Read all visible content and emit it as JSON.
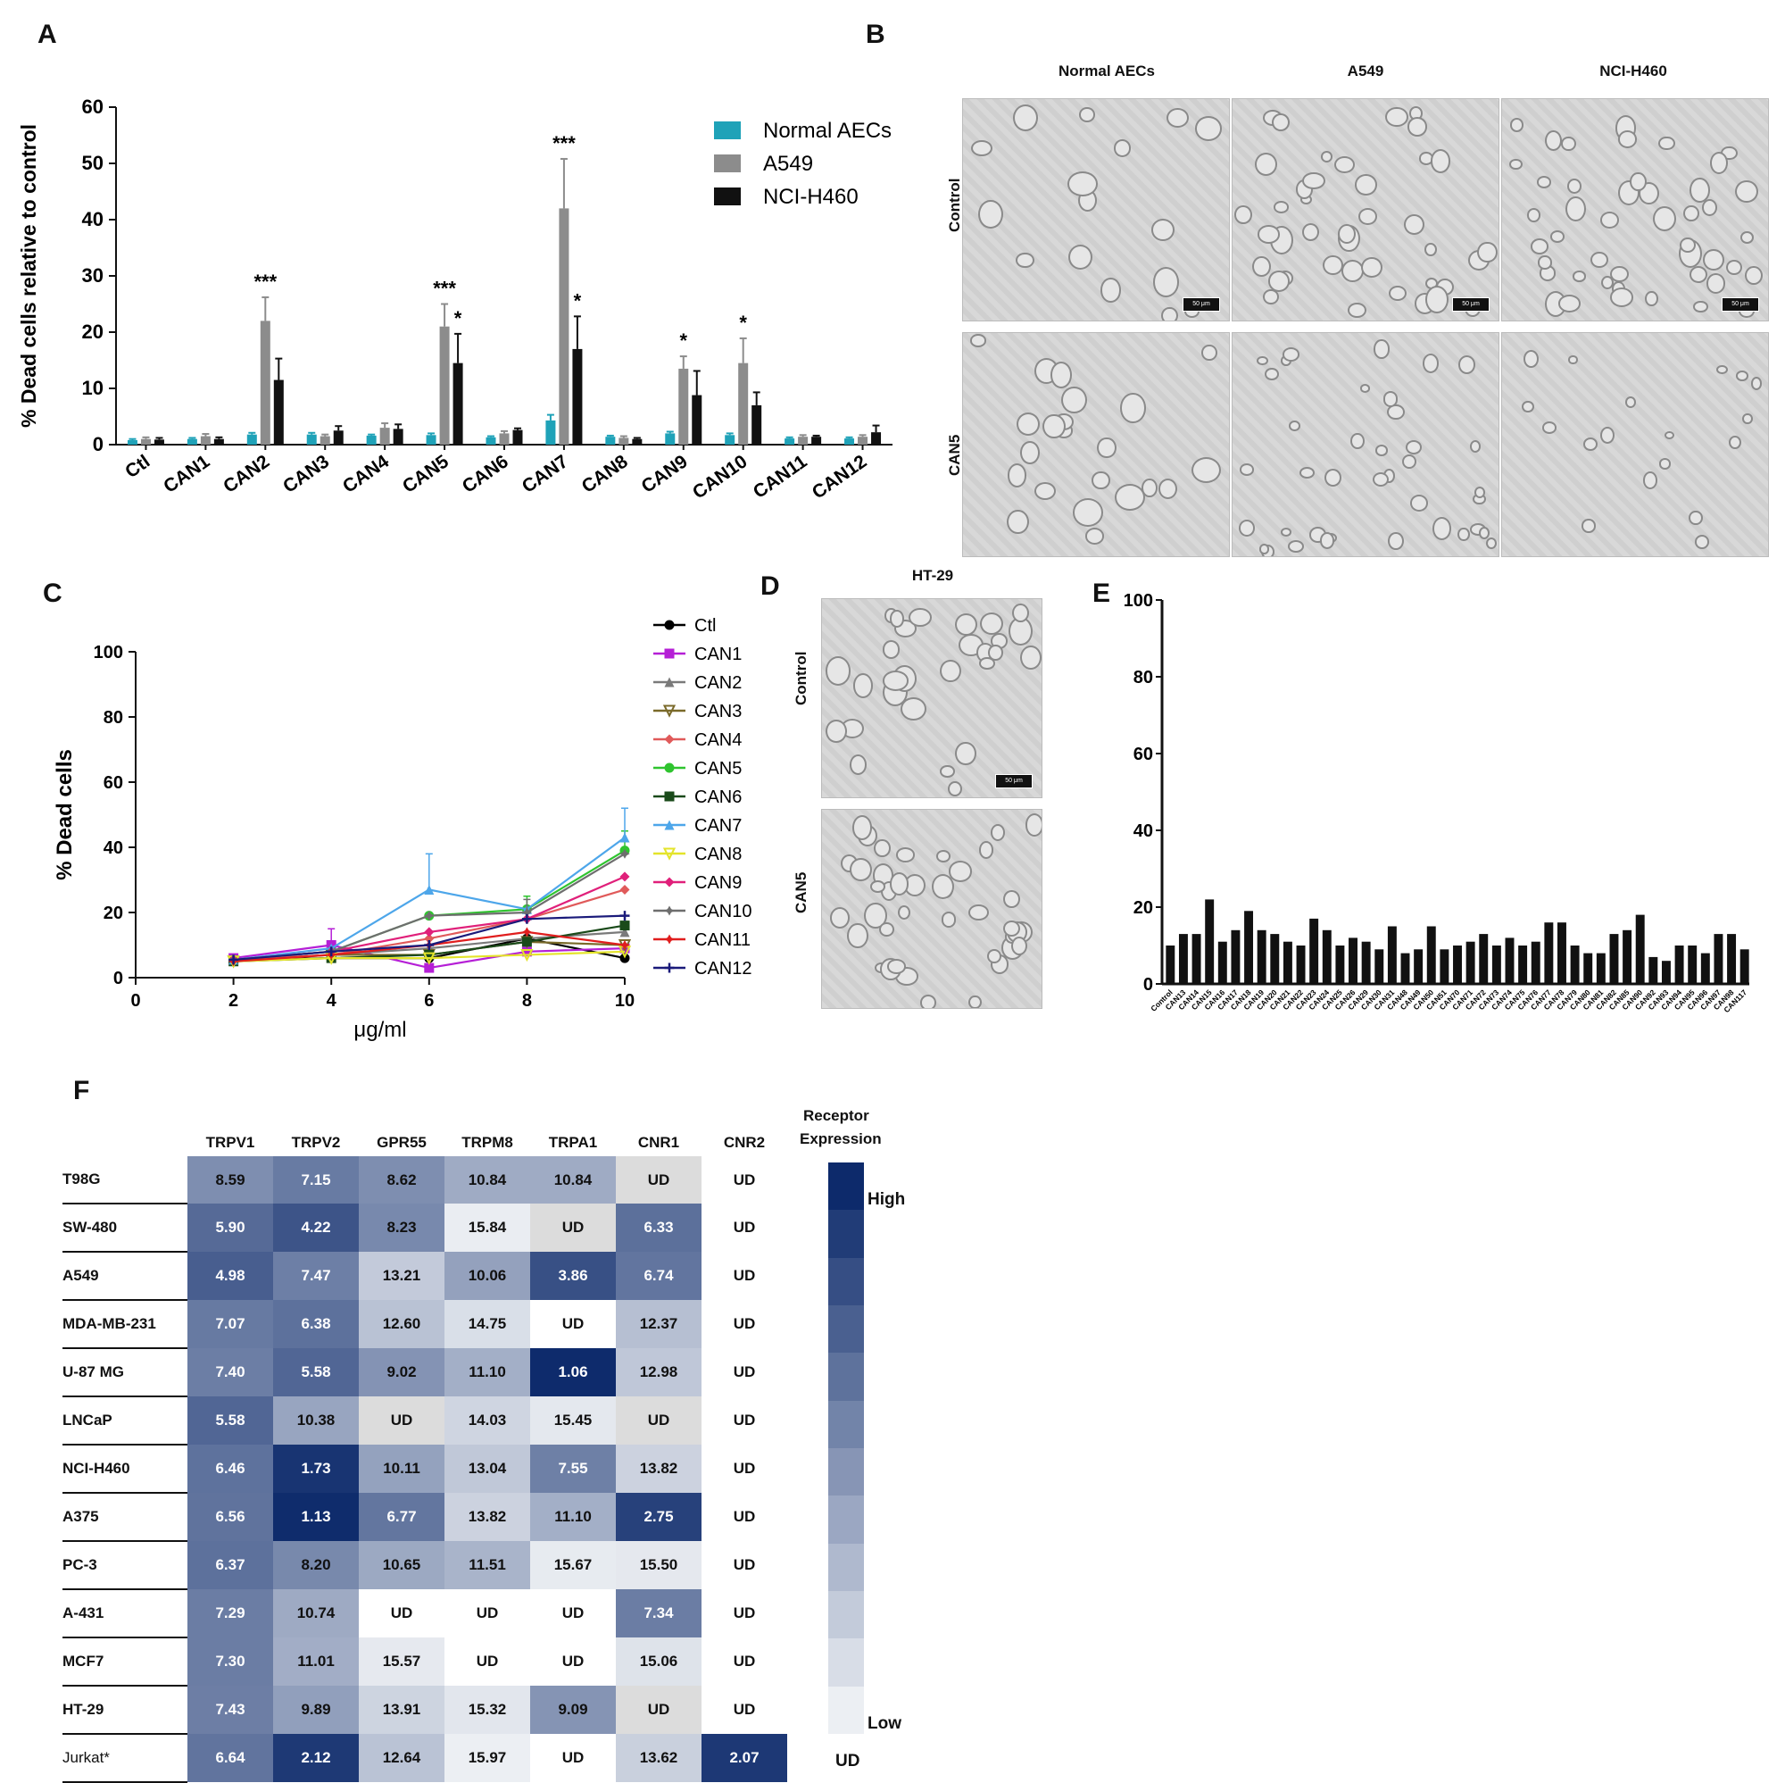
{
  "panels": {
    "A": "A",
    "B": "B",
    "C": "C",
    "D": "D",
    "E": "E",
    "F": "F"
  },
  "chart_data": [
    {
      "id": "A",
      "type": "bar",
      "ylabel": "% Dead cells relative to control",
      "ylim": [
        0,
        60
      ],
      "yticks": [
        0,
        10,
        20,
        30,
        40,
        50,
        60
      ],
      "legend_position": "top-right",
      "categories": [
        "Ctl",
        "CAN1",
        "CAN2",
        "CAN3",
        "CAN4",
        "CAN5",
        "CAN6",
        "CAN7",
        "CAN8",
        "CAN9",
        "CAN10",
        "CAN11",
        "CAN12"
      ],
      "series": [
        {
          "name": "Normal AECs",
          "color": "#1fa2b8",
          "values": [
            0.8,
            1.0,
            1.8,
            1.8,
            1.6,
            1.7,
            1.3,
            4.3,
            1.4,
            2.0,
            1.7,
            1.1,
            1.1
          ],
          "errors": [
            0.2,
            0.2,
            0.3,
            0.3,
            0.2,
            0.3,
            0.2,
            1.0,
            0.2,
            0.3,
            0.3,
            0.2,
            0.2
          ],
          "sig": [
            "",
            "",
            "",
            "",
            "",
            "",
            "",
            "",
            "",
            "",
            "",
            "",
            ""
          ]
        },
        {
          "name": "A549",
          "color": "#8c8c8c",
          "values": [
            1.0,
            1.5,
            22.0,
            1.5,
            3.0,
            21.0,
            2.0,
            42.0,
            1.2,
            13.5,
            14.5,
            1.4,
            1.4
          ],
          "errors": [
            0.3,
            0.4,
            4.2,
            0.3,
            0.8,
            4.0,
            0.4,
            8.8,
            0.3,
            2.2,
            4.4,
            0.3,
            0.3
          ],
          "sig": [
            "",
            "",
            "***",
            "",
            "",
            "***",
            "",
            "***",
            "",
            "*",
            "*",
            "",
            ""
          ]
        },
        {
          "name": "NCI-H460",
          "color": "#111111",
          "values": [
            0.9,
            1.0,
            11.5,
            2.5,
            2.8,
            14.5,
            2.6,
            17.0,
            1.0,
            8.8,
            7.0,
            1.4,
            2.2
          ],
          "errors": [
            0.3,
            0.3,
            3.8,
            0.8,
            0.8,
            5.2,
            0.3,
            5.8,
            0.2,
            4.3,
            2.3,
            0.2,
            1.2
          ],
          "sig": [
            "",
            "",
            "",
            "",
            "",
            "*",
            "",
            "*",
            "",
            "",
            "",
            "",
            ""
          ]
        }
      ]
    },
    {
      "id": "C",
      "type": "line",
      "xlabel": "μg/ml",
      "ylabel": "% Dead cells",
      "xlim": [
        0,
        10
      ],
      "ylim": [
        0,
        100
      ],
      "xticks": [
        0,
        2,
        4,
        6,
        8,
        10
      ],
      "yticks": [
        0,
        20,
        40,
        60,
        80,
        100
      ],
      "x": [
        2,
        4,
        6,
        8,
        10
      ],
      "legend_position": "top-right",
      "series": [
        {
          "name": "Ctl",
          "color": "#000000",
          "marker": "circle",
          "values": [
            5.5,
            6,
            6,
            12,
            6
          ]
        },
        {
          "name": "CAN1",
          "color": "#b51fd6",
          "marker": "square",
          "values": [
            6,
            10,
            3,
            8,
            9
          ]
        },
        {
          "name": "CAN2",
          "color": "#7a7a7a",
          "marker": "triangle",
          "values": [
            5.5,
            7,
            9,
            12,
            14
          ]
        },
        {
          "name": "CAN3",
          "color": "#7a6a2a",
          "marker": "tri-down",
          "values": [
            5,
            7,
            7,
            11,
            10
          ]
        },
        {
          "name": "CAN4",
          "color": "#e05a5a",
          "marker": "diamond",
          "values": [
            5.5,
            7,
            12,
            18,
            27
          ]
        },
        {
          "name": "CAN5",
          "color": "#2fc42f",
          "marker": "circle",
          "values": [
            5.5,
            8,
            19,
            21,
            39
          ]
        },
        {
          "name": "CAN6",
          "color": "#1a4a1a",
          "marker": "square",
          "values": [
            5,
            6,
            7,
            11,
            16
          ]
        },
        {
          "name": "CAN7",
          "color": "#4da6ea",
          "marker": "triangle",
          "values": [
            5.5,
            9,
            27,
            21,
            43
          ]
        },
        {
          "name": "CAN8",
          "color": "#e4e42a",
          "marker": "tri-down",
          "values": [
            5,
            6,
            6,
            7,
            8
          ]
        },
        {
          "name": "CAN9",
          "color": "#e0207a",
          "marker": "diamond",
          "values": [
            5.5,
            8,
            14,
            18,
            31
          ]
        },
        {
          "name": "CAN10",
          "color": "#6e6e6e",
          "marker": "star",
          "values": [
            5.5,
            8,
            19,
            20,
            38
          ]
        },
        {
          "name": "CAN11",
          "color": "#e01e1e",
          "marker": "star",
          "values": [
            5,
            7,
            10,
            14,
            10
          ]
        },
        {
          "name": "CAN12",
          "color": "#1a1a7a",
          "marker": "plus",
          "values": [
            5.5,
            8,
            10,
            18,
            19
          ]
        }
      ],
      "errors": {
        "CAN7": [
          0,
          0,
          11,
          0,
          9
        ],
        "CAN1": [
          0,
          5,
          0,
          0,
          0
        ],
        "CAN5": [
          0,
          0,
          0,
          4,
          6
        ],
        "CAN10": [
          0,
          0,
          0,
          4,
          0
        ]
      }
    },
    {
      "id": "E",
      "type": "bar",
      "ylabel": "% Dead cells",
      "ylim": [
        0,
        100
      ],
      "yticks": [
        0,
        20,
        40,
        60,
        80,
        100
      ],
      "categories": [
        "Control",
        "CAN13",
        "CAN14",
        "CAN15",
        "CAN16",
        "CAN17",
        "CAN18",
        "CAN19",
        "CAN20",
        "CAN21",
        "CAN22",
        "CAN23",
        "CAN24",
        "CAN25",
        "CAN26",
        "CAN29",
        "CAN30",
        "CAN31",
        "CAN48",
        "CAN49",
        "CAN50",
        "CAN51",
        "CAN70",
        "CAN71",
        "CAN72",
        "CAN73",
        "CAN74",
        "CAN75",
        "CAN76",
        "CAN77",
        "CAN78",
        "CAN79",
        "CAN80",
        "CAN81",
        "CAN82",
        "CAN85",
        "CAN90",
        "CAN92",
        "CAN93",
        "CAN94",
        "CAN95",
        "CAN96",
        "CAN97",
        "CAN98",
        "CAN117"
      ],
      "values": [
        10,
        13,
        13,
        22,
        11,
        14,
        19,
        14,
        13,
        11,
        10,
        17,
        14,
        10,
        12,
        11,
        9,
        15,
        8,
        9,
        15,
        9,
        10,
        11,
        13,
        10,
        12,
        10,
        11,
        16,
        16,
        10,
        8,
        8,
        13,
        14,
        18,
        7,
        6,
        10,
        10,
        8,
        13,
        13,
        9
      ]
    },
    {
      "id": "F",
      "type": "heatmap",
      "columns": [
        "TRPV1",
        "TRPV2",
        "GPR55",
        "TRPM8",
        "TRPA1",
        "CNR1",
        "CNR2"
      ],
      "rows": [
        {
          "label": "T98G",
          "values": [
            "8.59",
            "7.15",
            "8.62",
            "10.84",
            "10.84",
            "UD",
            "UD"
          ]
        },
        {
          "label": "SW-480",
          "values": [
            "5.90",
            "4.22",
            "8.23",
            "15.84",
            "UD",
            "6.33",
            "UD"
          ]
        },
        {
          "label": "A549",
          "values": [
            "4.98",
            "7.47",
            "13.21",
            "10.06",
            "3.86",
            "6.74",
            "UD"
          ]
        },
        {
          "label": "MDA-MB-231",
          "values": [
            "7.07",
            "6.38",
            "12.60",
            "14.75",
            "UD",
            "12.37",
            "UD"
          ]
        },
        {
          "label": "U-87 MG",
          "values": [
            "7.40",
            "5.58",
            "9.02",
            "11.10",
            "1.06",
            "12.98",
            "UD"
          ]
        },
        {
          "label": "LNCaP",
          "values": [
            "5.58",
            "10.38",
            "UD",
            "14.03",
            "15.45",
            "UD",
            "UD"
          ]
        },
        {
          "label": "NCI-H460",
          "values": [
            "6.46",
            "1.73",
            "10.11",
            "13.04",
            "7.55",
            "13.82",
            "UD"
          ]
        },
        {
          "label": "A375",
          "values": [
            "6.56",
            "1.13",
            "6.77",
            "13.82",
            "11.10",
            "2.75",
            "UD"
          ]
        },
        {
          "label": "PC-3",
          "values": [
            "6.37",
            "8.20",
            "10.65",
            "11.51",
            "15.67",
            "15.50",
            "UD"
          ]
        },
        {
          "label": "A-431",
          "values": [
            "7.29",
            "10.74",
            "UD",
            "UD",
            "UD",
            "7.34",
            "UD"
          ]
        },
        {
          "label": "MCF7",
          "values": [
            "7.30",
            "11.01",
            "15.57",
            "UD",
            "UD",
            "15.06",
            "UD"
          ]
        },
        {
          "label": "HT-29",
          "values": [
            "7.43",
            "9.89",
            "13.91",
            "15.32",
            "9.09",
            "UD",
            "UD"
          ]
        },
        {
          "label": "Jurkat*",
          "values": [
            "6.64",
            "2.12",
            "12.64",
            "15.97",
            "UD",
            "13.62",
            "2.07"
          ]
        }
      ],
      "legend": {
        "title_line1": "Receptor",
        "title_line2": "Expression",
        "high": "High",
        "low": "Low",
        "ud": "UD"
      },
      "colors": {
        "high": "#0d2a6b",
        "low": "#eceff3",
        "ud_cell": "#ffffff",
        "ud_gray": "#dcdcdc"
      }
    }
  ],
  "micrographs": {
    "B": {
      "columns": [
        "Normal AECs",
        "A549",
        "NCI-H460"
      ],
      "rows": [
        "Control",
        "CAN5"
      ],
      "scale_label": "50 μm"
    },
    "D": {
      "title": "HT-29",
      "rows": [
        "Control",
        "CAN5"
      ],
      "scale_label": "50 μm"
    }
  }
}
